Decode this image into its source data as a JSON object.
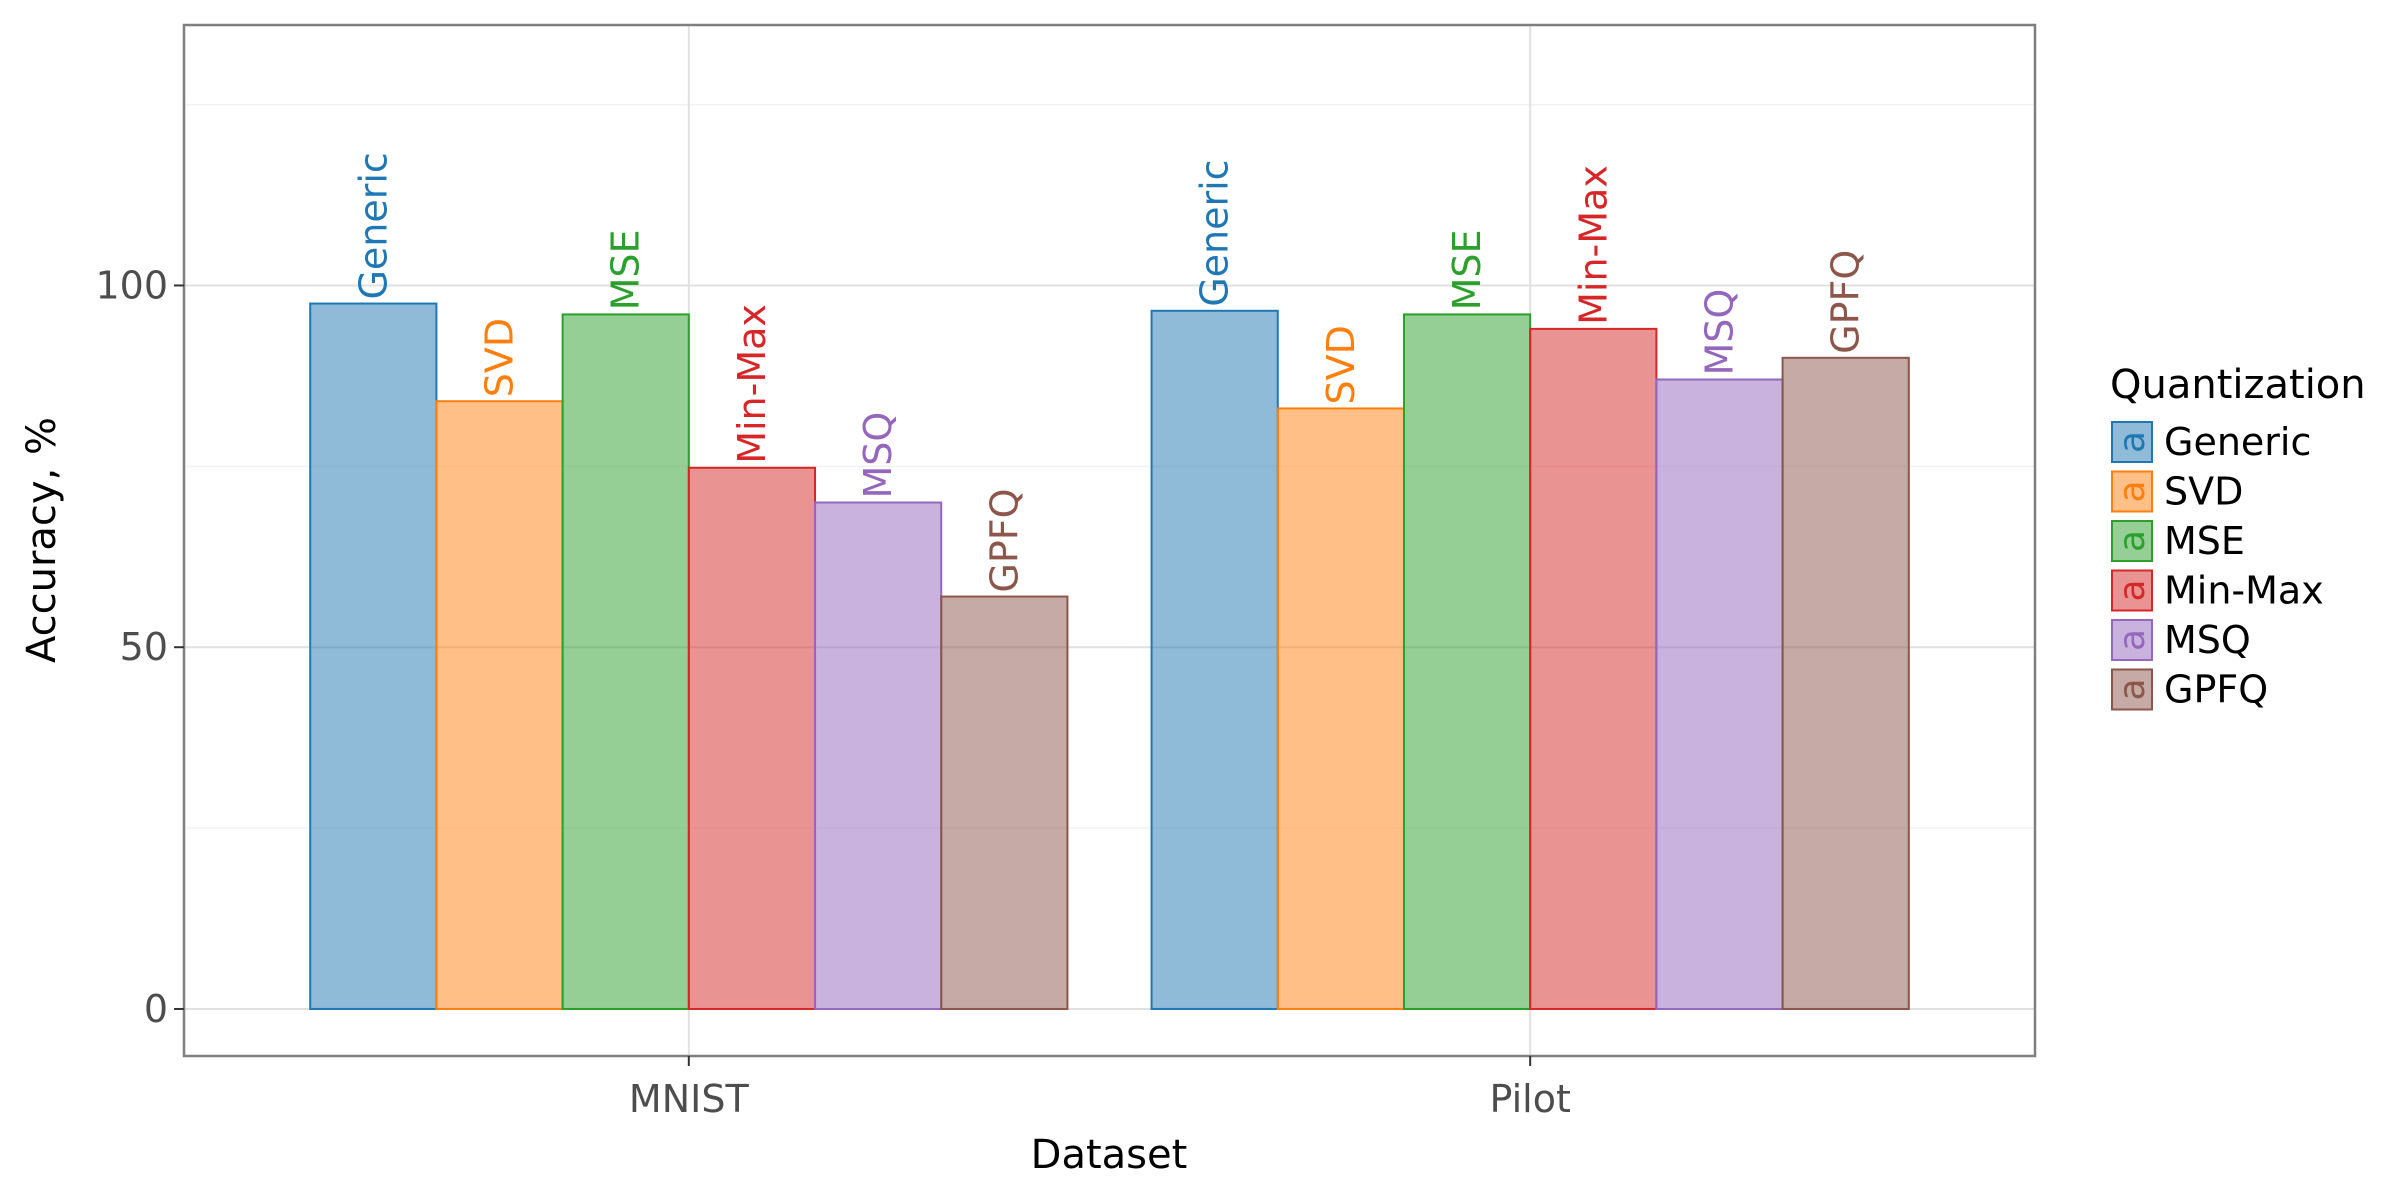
{
  "chart_data": {
    "type": "bar",
    "categories": [
      "MNIST",
      "Pilot"
    ],
    "series": [
      {
        "name": "Generic",
        "values": [
          97.5,
          96.5
        ],
        "color": "#1f77b4"
      },
      {
        "name": "SVD",
        "values": [
          84,
          83
        ],
        "color": "#ff7f0e"
      },
      {
        "name": "MSE",
        "values": [
          96,
          96
        ],
        "color": "#2ca02c"
      },
      {
        "name": "Min-Max",
        "values": [
          74.8,
          94
        ],
        "color": "#d62728"
      },
      {
        "name": "MSQ",
        "values": [
          70,
          87
        ],
        "color": "#9467bd"
      },
      {
        "name": "GPFQ",
        "values": [
          57,
          90
        ],
        "color": "#8c564b"
      }
    ],
    "xlabel": "Dataset",
    "ylabel": "Accuracy, %",
    "ylim": [
      -6.5,
      136
    ],
    "yticks": [
      0,
      50,
      100
    ],
    "legend_title": "Quantization",
    "legend_key_glyph": "a",
    "legend_position": "right",
    "grid": true,
    "bar_labels": true
  }
}
